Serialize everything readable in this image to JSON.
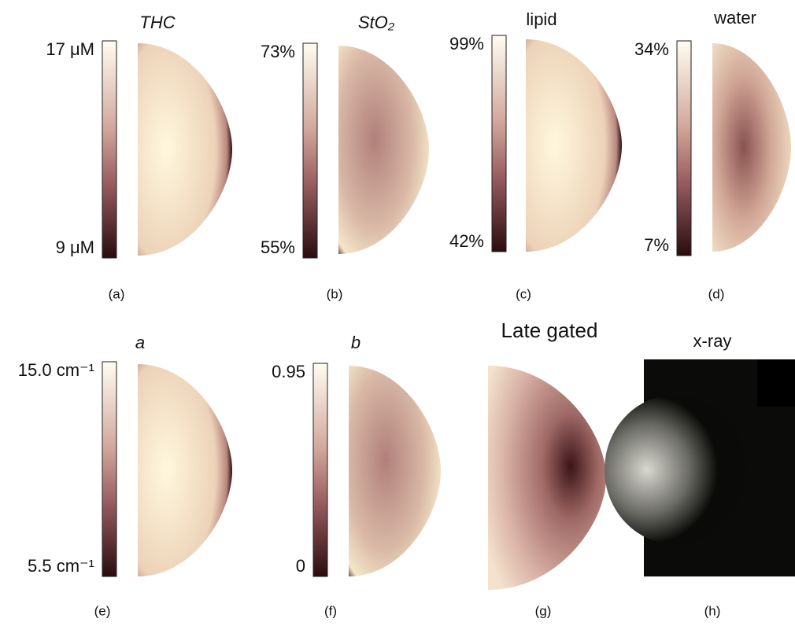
{
  "panels": [
    {
      "title": "THC",
      "colorbar_max": "17 μM",
      "colorbar_min": "9 μM",
      "caption": "(a)"
    },
    {
      "title": "StO₂",
      "colorbar_max": "73%",
      "colorbar_min": "55%",
      "caption": "(b)"
    },
    {
      "title": "lipid",
      "colorbar_max": "99%",
      "colorbar_min": "42%",
      "caption": "(c)"
    },
    {
      "title": "water",
      "colorbar_max": "34%",
      "colorbar_min": "7%",
      "caption": "(d)"
    },
    {
      "title": "a",
      "colorbar_max": "15.0 cm⁻¹",
      "colorbar_min": "5.5 cm⁻¹",
      "caption": "(e)"
    },
    {
      "title": "b",
      "colorbar_max": "0.95",
      "colorbar_min": "0",
      "caption": "(f)"
    },
    {
      "title": "Late gated",
      "caption": "(g)"
    },
    {
      "title": "x-ray",
      "caption": "(h)"
    }
  ]
}
